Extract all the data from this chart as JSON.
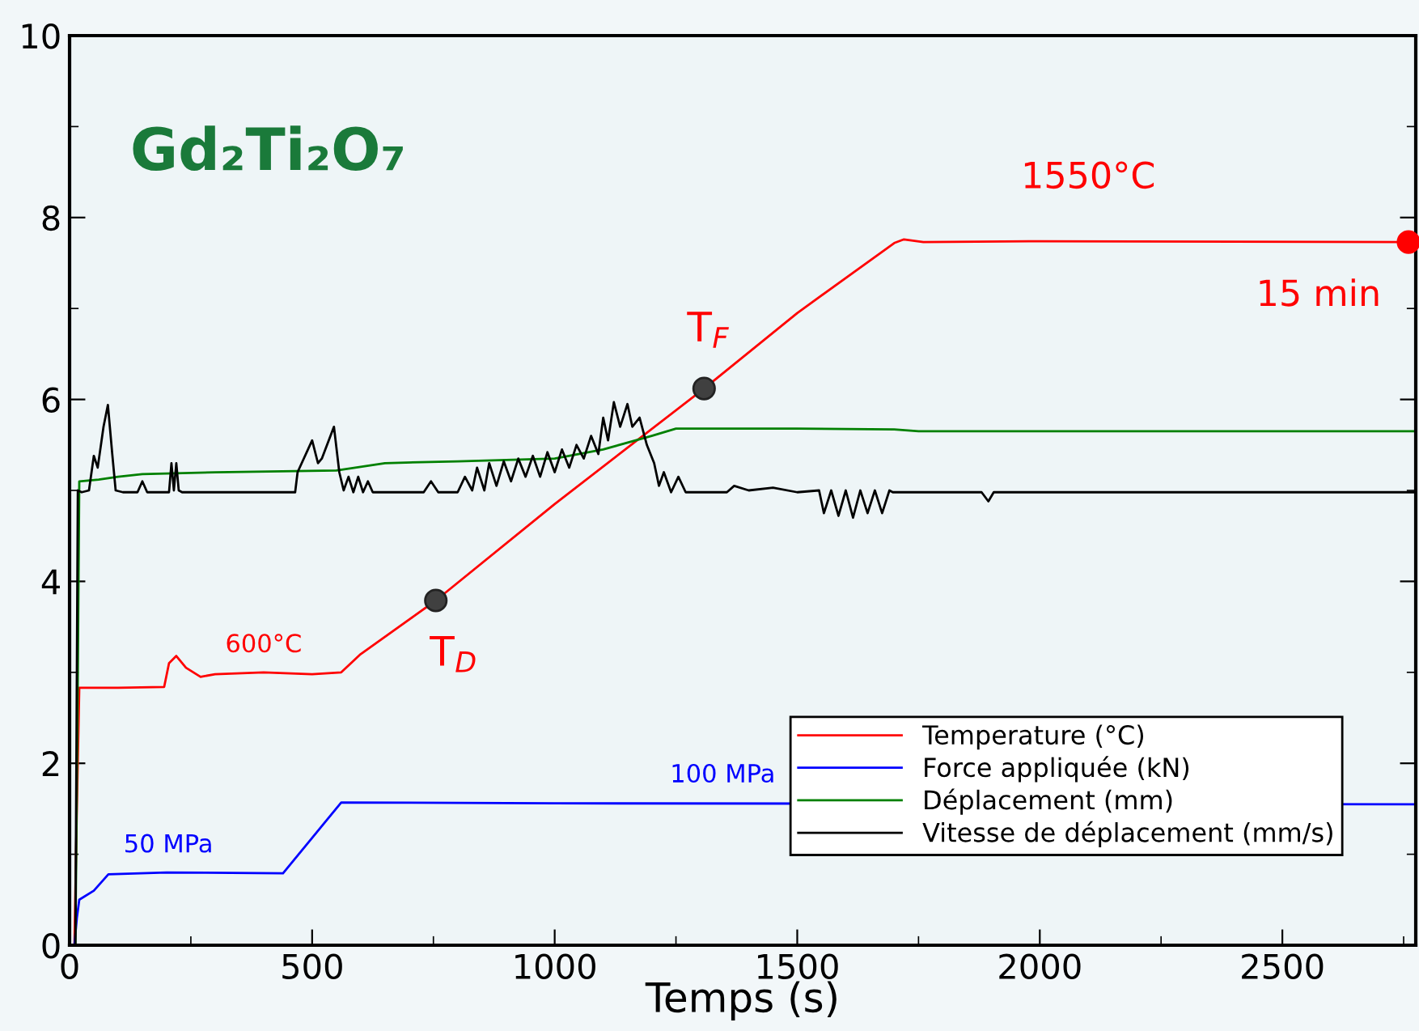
{
  "chart_data": {
    "type": "line",
    "title": "Gd₂Ti₂O₇",
    "xlabel": "Temps (s)",
    "xlim": [
      0,
      2775
    ],
    "ylim": [
      0,
      10
    ],
    "xticks": [
      0,
      500,
      1000,
      1500,
      2000,
      2500
    ],
    "yticks": [
      0,
      2,
      4,
      6,
      8,
      10
    ],
    "grid": false,
    "legend": "bottom right",
    "marker": "none",
    "line_style": "solid",
    "series": [
      {
        "name": "Temperature (°C)",
        "color": "#ff0000",
        "x": [
          10,
          15,
          20,
          100,
          195,
          205,
          220,
          240,
          270,
          300,
          400,
          500,
          560,
          600,
          755,
          1000,
          1308,
          1500,
          1700,
          1720,
          1760,
          2000,
          2760
        ],
        "values": [
          0,
          1.5,
          2.83,
          2.83,
          2.84,
          3.1,
          3.18,
          3.05,
          2.95,
          2.98,
          3.0,
          2.98,
          3.0,
          3.2,
          3.79,
          4.85,
          6.12,
          6.95,
          7.72,
          7.76,
          7.73,
          7.74,
          7.73
        ]
      },
      {
        "name": "Force appliquée (kN)",
        "color": "#0000ff",
        "x": [
          10,
          15,
          20,
          50,
          80,
          200,
          440,
          500,
          560,
          1000,
          2775
        ],
        "values": [
          0,
          0.3,
          0.5,
          0.6,
          0.78,
          0.8,
          0.79,
          1.18,
          1.57,
          1.56,
          1.55
        ]
      },
      {
        "name": "Déplacement (mm)",
        "color": "#008000",
        "x": [
          12,
          17,
          20,
          60,
          100,
          150,
          300,
          550,
          650,
          800,
          1000,
          1100,
          1200,
          1250,
          1500,
          1700,
          1750,
          2000,
          2775
        ],
        "values": [
          0,
          3.0,
          5.1,
          5.12,
          5.15,
          5.18,
          5.2,
          5.22,
          5.3,
          5.32,
          5.35,
          5.45,
          5.6,
          5.68,
          5.68,
          5.67,
          5.65,
          5.65,
          5.65
        ]
      },
      {
        "name": "Vitesse de déplacement (mm/s)",
        "color": "#000000",
        "x": [
          12,
          17,
          25,
          40,
          50,
          58,
          70,
          79,
          88,
          95,
          110,
          140,
          150,
          160,
          205,
          210,
          215,
          220,
          225,
          232,
          250,
          465,
          470,
          500,
          512,
          520,
          545,
          556,
          565,
          575,
          585,
          595,
          605,
          615,
          625,
          640,
          680,
          730,
          745,
          760,
          800,
          815,
          830,
          840,
          855,
          865,
          880,
          895,
          910,
          925,
          940,
          955,
          970,
          985,
          1000,
          1015,
          1030,
          1045,
          1060,
          1075,
          1090,
          1100,
          1110,
          1122,
          1135,
          1150,
          1160,
          1175,
          1190,
          1205,
          1215,
          1225,
          1240,
          1255,
          1270,
          1280,
          1355,
          1370,
          1400,
          1450,
          1500,
          1545,
          1555,
          1570,
          1585,
          1600,
          1615,
          1630,
          1645,
          1660,
          1675,
          1690,
          1697,
          1880,
          1894,
          1905,
          2775
        ],
        "values": [
          0,
          5.0,
          4.98,
          5.0,
          5.38,
          5.25,
          5.7,
          5.94,
          5.4,
          5.0,
          4.98,
          4.98,
          5.1,
          4.98,
          4.98,
          5.3,
          5.0,
          5.3,
          5.0,
          4.98,
          4.98,
          4.98,
          5.2,
          5.55,
          5.3,
          5.35,
          5.7,
          5.2,
          5.0,
          5.15,
          4.98,
          5.15,
          4.98,
          5.1,
          4.98,
          4.98,
          4.98,
          4.98,
          5.1,
          4.98,
          4.98,
          5.15,
          5.0,
          5.25,
          5.0,
          5.3,
          5.05,
          5.32,
          5.1,
          5.35,
          5.15,
          5.38,
          5.15,
          5.42,
          5.2,
          5.45,
          5.25,
          5.5,
          5.35,
          5.6,
          5.4,
          5.8,
          5.55,
          5.97,
          5.7,
          5.95,
          5.7,
          5.8,
          5.5,
          5.3,
          5.05,
          5.2,
          4.98,
          5.15,
          4.98,
          4.98,
          4.98,
          5.05,
          5.0,
          5.03,
          4.98,
          5.0,
          4.75,
          5.0,
          4.72,
          5.0,
          4.7,
          5.0,
          4.75,
          5.0,
          4.75,
          5.0,
          4.98,
          4.98,
          4.88,
          4.98,
          4.98
        ]
      },
      {
        "type": "scatter",
        "marker": "circle",
        "color": "#404040",
        "x": [
          755,
          1308
        ],
        "values": [
          3.79,
          6.12
        ]
      },
      {
        "type": "scatter",
        "marker": "circle",
        "color": "#ff0000",
        "x": [
          2760
        ],
        "values": [
          7.73
        ]
      }
    ],
    "annotations": [
      {
        "text": "600°C",
        "x": 400,
        "y": 3.0
      },
      {
        "text": "T$_{D}$",
        "x": 755,
        "y": 3.79
      },
      {
        "text": "T$_{F}$",
        "x": 1308,
        "y": 6.12
      },
      {
        "text": "1550°C",
        "x": 2100,
        "y": 7.74
      },
      {
        "text": "15 min",
        "x": 2760,
        "y": 7.73
      },
      {
        "text": "50 MPa",
        "x": 250,
        "y": 0.8
      },
      {
        "text": "100 MPa",
        "x": 1300,
        "y": 1.57
      }
    ]
  }
}
